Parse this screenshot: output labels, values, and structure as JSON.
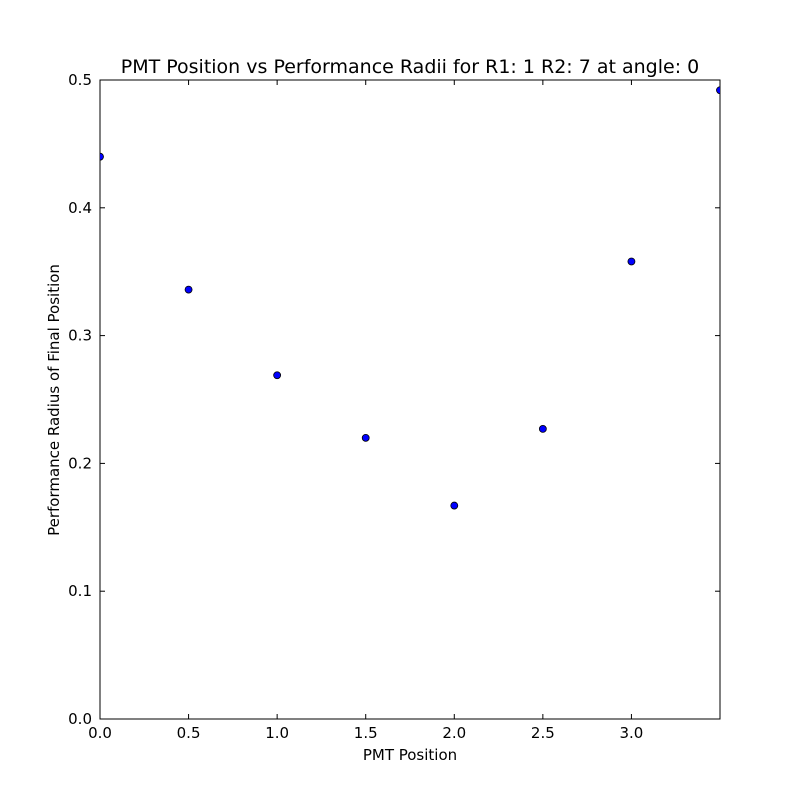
{
  "chart_data": {
    "type": "scatter",
    "title": "PMT Position vs Performance Radii for R1: 1 R2: 7 at angle: 0",
    "xlabel": "PMT Position",
    "ylabel": "Performance Radius of Final Position",
    "xlim": [
      0.0,
      3.5
    ],
    "ylim": [
      0.0,
      0.5
    ],
    "xticks": [
      0.0,
      0.5,
      1.0,
      1.5,
      2.0,
      2.5,
      3.0
    ],
    "xtick_labels": [
      "0.0",
      "0.5",
      "1.0",
      "1.5",
      "2.0",
      "2.5",
      "3.0"
    ],
    "yticks": [
      0.0,
      0.1,
      0.2,
      0.3,
      0.4,
      0.5
    ],
    "ytick_labels": [
      "0.0",
      "0.1",
      "0.2",
      "0.3",
      "0.4",
      "0.5"
    ],
    "grid": false,
    "marker_color": "#0000ff",
    "marker_edge_color": "#000000",
    "series": [
      {
        "x": [
          0.0,
          0.5,
          1.0,
          1.5,
          2.0,
          2.5,
          3.0,
          3.5
        ],
        "y": [
          0.44,
          0.336,
          0.269,
          0.22,
          0.167,
          0.227,
          0.358,
          0.492
        ]
      }
    ]
  }
}
